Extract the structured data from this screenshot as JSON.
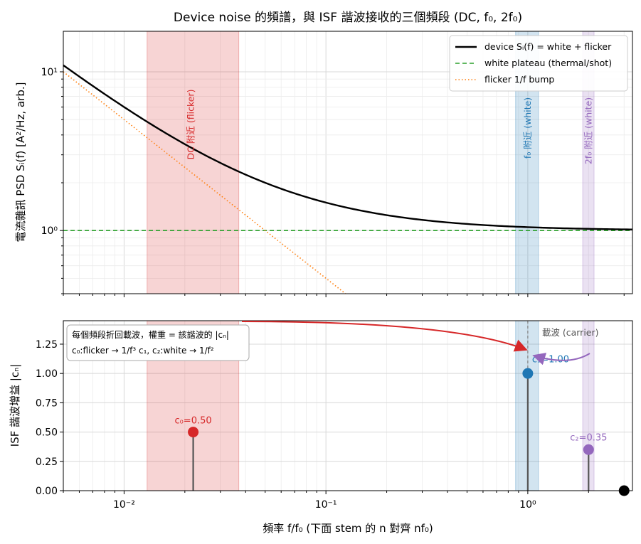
{
  "chart_data": [
    {
      "type": "line",
      "title": "Device noise 的頻譜，與 ISF 諧波接收的三個頻段 (DC, f₀, 2f₀)",
      "ylabel": "電流雜訊 PSD  Sᵢ(f) [A²/Hz, arb.]",
      "xscale": "log",
      "yscale": "log",
      "xlim": [
        0.005,
        3.3
      ],
      "ylim": [
        0.4,
        18
      ],
      "y_ticks": [
        {
          "value": 1,
          "label": "10⁰"
        },
        {
          "value": 10,
          "label": "10¹"
        }
      ],
      "grid": true,
      "legend_position": "top-right",
      "series": [
        {
          "name": "device Sᵢ(f) = white + flicker",
          "style": "solid",
          "color": "#000000",
          "formula": "1 + 0.05 / f",
          "x": [
            0.005,
            0.01,
            0.02,
            0.05,
            0.1,
            0.2,
            0.5,
            1,
            2,
            3.3
          ],
          "y": [
            11.0,
            6.0,
            3.5,
            2.0,
            1.5,
            1.25,
            1.1,
            1.05,
            1.025,
            1.015
          ]
        },
        {
          "name": "white plateau (thermal/shot)",
          "style": "dashed",
          "color": "#2ca02c",
          "x": [
            0.005,
            3.3
          ],
          "y": [
            1,
            1
          ]
        },
        {
          "name": "flicker 1/f bump",
          "style": "dotted",
          "color": "#ff7f0e",
          "formula": "0.05 / f",
          "x": [
            0.005,
            0.01,
            0.05,
            0.125
          ],
          "y": [
            10.0,
            5.0,
            1.0,
            0.4
          ]
        }
      ],
      "bands": [
        {
          "label": "DC 附近 (flicker)",
          "x0": 0.013,
          "x1": 0.037,
          "color": "#d62728"
        },
        {
          "label": "f₀ 附近 (white)",
          "x0": 0.87,
          "x1": 1.13,
          "color": "#1f77b4"
        },
        {
          "label": "2f₀ 附近 (white)",
          "x0": 1.87,
          "x1": 2.13,
          "color": "#9467bd"
        }
      ]
    },
    {
      "type": "stem",
      "xlabel": "頻率 f/f₀  (下面 stem 的 n 對齊 nf₀)",
      "ylabel": "ISF 諧波增益 |cₙ|",
      "xscale": "log",
      "xlim": [
        0.005,
        3.3
      ],
      "ylim": [
        0,
        1.45
      ],
      "x_ticks": [
        {
          "value": 0.01,
          "label": "10⁻²"
        },
        {
          "value": 0.1,
          "label": "10⁻¹"
        },
        {
          "value": 1,
          "label": "10⁰"
        }
      ],
      "y_ticks": [
        "0.00",
        "0.25",
        "0.50",
        "0.75",
        "1.00",
        "1.25"
      ],
      "grid": true,
      "stems": [
        {
          "label": "c₀=0.50",
          "x": 0.022,
          "y": 0.5,
          "color": "#d62728"
        },
        {
          "label": "c₁=1.00",
          "x": 1.0,
          "y": 1.0,
          "color": "#1f77b4"
        },
        {
          "label": "c₂=0.35",
          "x": 2.0,
          "y": 0.35,
          "color": "#9467bd"
        },
        {
          "label": "",
          "x": 3.0,
          "y": 0.0,
          "color": "#000000"
        }
      ],
      "carrier": {
        "x": 1.0,
        "label": "載波 (carrier)"
      },
      "annotation_lines": [
        "每個頻段折回載波，權重 = 該諧波的 |cₙ|",
        "c₀:flicker → 1/f³     c₁, c₂:white → 1/f²"
      ]
    }
  ]
}
